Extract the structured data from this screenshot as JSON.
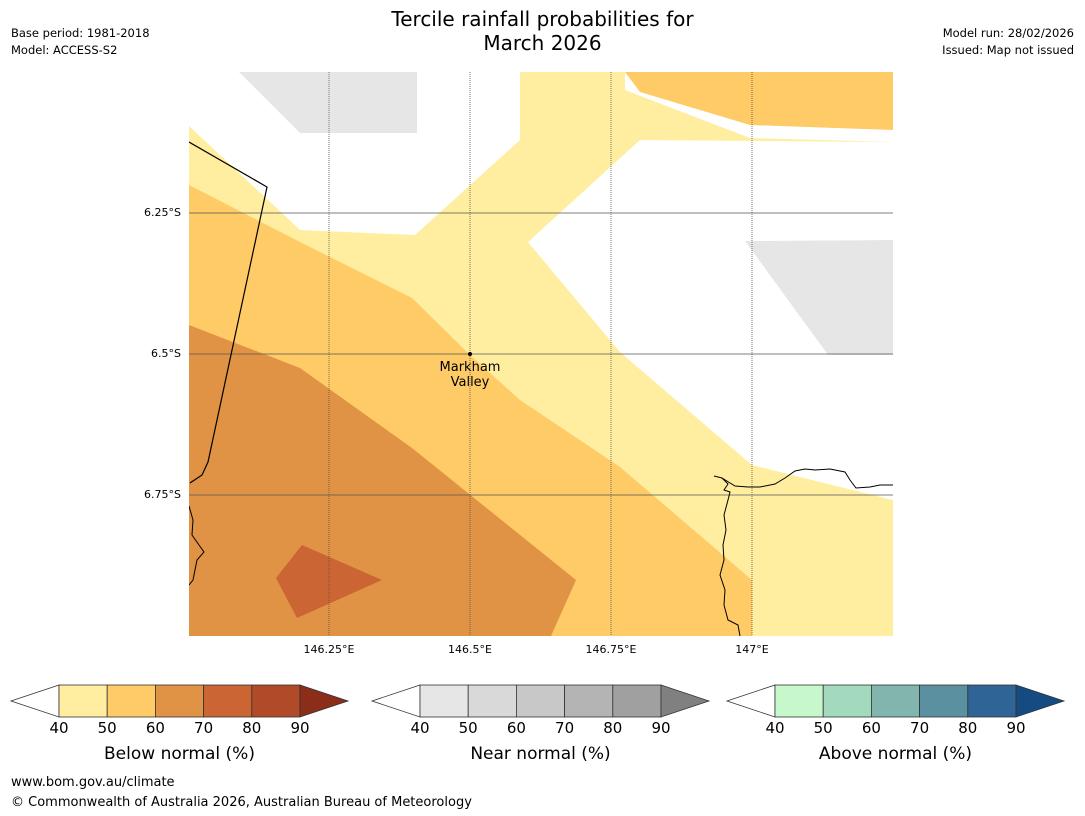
{
  "header": {
    "title_line1": "Tercile rainfall probabilities for",
    "title_line2": "March 2026",
    "base_period": "Base period: 1981-2018",
    "model": "Model: ACCESS-S2",
    "model_run": "Model run: 28/02/2026",
    "issued": "Issued: Map not issued"
  },
  "map": {
    "latitude_labels": [
      "6.25°S",
      "6.5°S",
      "6.75°S"
    ],
    "longitude_labels": [
      "146.25°E",
      "146.5°E",
      "146.75°E",
      "147°E"
    ],
    "place": {
      "line1": "Markham",
      "line2": "Valley",
      "symbol": "dot-marker"
    }
  },
  "colorbars": [
    {
      "title": "Below normal (%)",
      "ticks": [
        "40",
        "50",
        "60",
        "70",
        "80",
        "90"
      ],
      "colors": [
        "#ffeda0",
        "#fecb66",
        "#e09344",
        "#cc6534",
        "#b04a29"
      ],
      "extend_color": "#8c2d1a"
    },
    {
      "title": "Near normal (%)",
      "ticks": [
        "40",
        "50",
        "60",
        "70",
        "80",
        "90"
      ],
      "colors": [
        "#e6e6e6",
        "#d9d9d9",
        "#c8c8c8",
        "#b4b4b4",
        "#a0a0a0"
      ],
      "extend_color": "#808080"
    },
    {
      "title": "Above normal (%)",
      "ticks": [
        "40",
        "50",
        "60",
        "70",
        "80",
        "90"
      ],
      "colors": [
        "#c7f8cc",
        "#a3d9bc",
        "#82b5ae",
        "#5b90a0",
        "#2e6496"
      ],
      "extend_color": "#164b82"
    }
  ],
  "footer": {
    "url": "www.bom.gov.au/climate",
    "copyright": "© Commonwealth of Australia 2026, Australian Bureau of Meteorology"
  }
}
